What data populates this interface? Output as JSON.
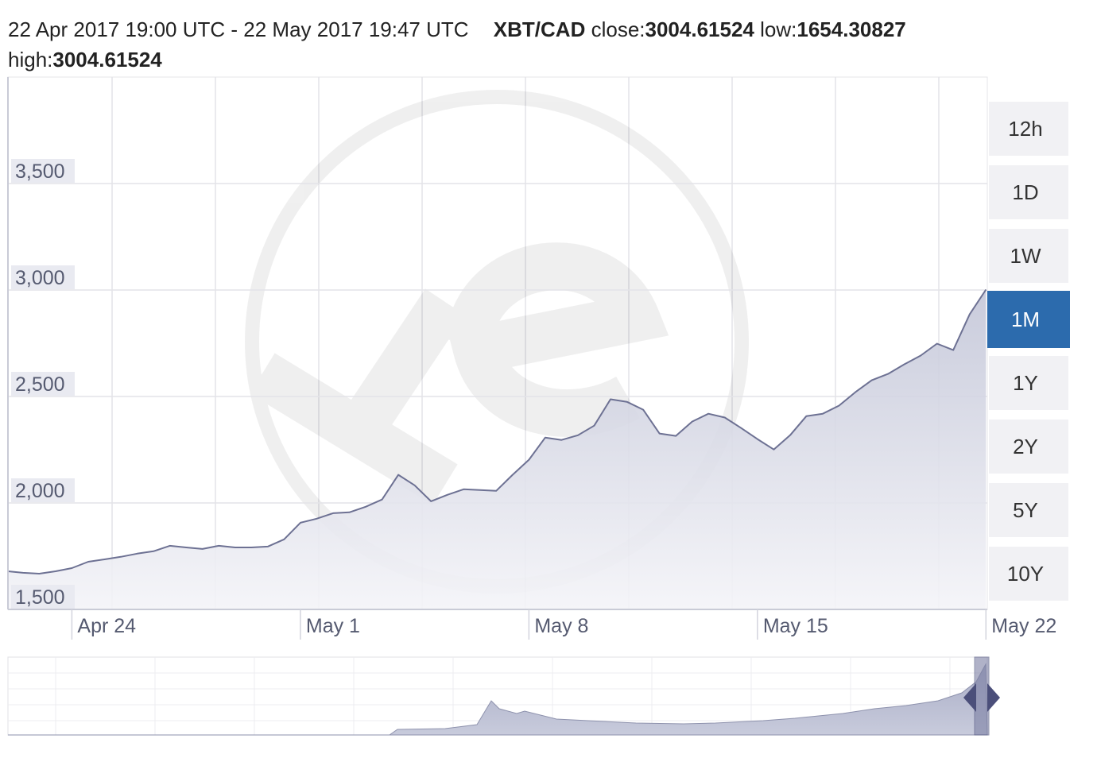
{
  "chart_data": {
    "type": "area",
    "title": "22 Apr 2017 19:00 UTC - 22 May 2017 19:47 UTC",
    "pair": "XBT/CAD",
    "stats": [
      {
        "label": "close:",
        "value": 3004.61524
      },
      {
        "label": "low:",
        "value": 1654.30827
      },
      {
        "label": "high:",
        "value": 3004.61524
      }
    ],
    "x": [
      "2017-04-22T01:00",
      "2017-04-22T12:00",
      "2017-04-23T00:00",
      "2017-04-23T12:00",
      "2017-04-24T00:00",
      "2017-04-24T12:00",
      "2017-04-25T00:00",
      "2017-04-25T12:00",
      "2017-04-26T00:00",
      "2017-04-26T12:00",
      "2017-04-27T00:00",
      "2017-04-27T12:00",
      "2017-04-28T00:00",
      "2017-04-28T12:00",
      "2017-04-29T00:00",
      "2017-04-29T12:00",
      "2017-04-30T00:00",
      "2017-04-30T12:00",
      "2017-05-01T00:00",
      "2017-05-01T12:00",
      "2017-05-02T00:00",
      "2017-05-02T12:00",
      "2017-05-03T00:00",
      "2017-05-03T12:00",
      "2017-05-04T00:00",
      "2017-05-04T12:00",
      "2017-05-05T00:00",
      "2017-05-05T12:00",
      "2017-05-06T00:00",
      "2017-05-06T12:00",
      "2017-05-07T00:00",
      "2017-05-07T12:00",
      "2017-05-08T00:00",
      "2017-05-08T12:00",
      "2017-05-09T00:00",
      "2017-05-09T12:00",
      "2017-05-10T00:00",
      "2017-05-10T12:00",
      "2017-05-11T00:00",
      "2017-05-11T12:00",
      "2017-05-12T00:00",
      "2017-05-12T12:00",
      "2017-05-13T00:00",
      "2017-05-13T12:00",
      "2017-05-14T00:00",
      "2017-05-14T12:00",
      "2017-05-15T00:00",
      "2017-05-15T12:00",
      "2017-05-16T00:00",
      "2017-05-16T12:00",
      "2017-05-17T00:00",
      "2017-05-17T12:00",
      "2017-05-18T00:00",
      "2017-05-18T12:00",
      "2017-05-19T00:00",
      "2017-05-19T12:00",
      "2017-05-20T00:00",
      "2017-05-20T12:00",
      "2017-05-21T00:00",
      "2017-05-21T12:00",
      "2017-05-22T00:00"
    ],
    "series": [
      {
        "name": "XBT/CAD",
        "color": "#6d7193",
        "values": [
          1679,
          1672,
          1668,
          1679,
          1694,
          1724,
          1735,
          1747,
          1762,
          1773,
          1799,
          1791,
          1784,
          1799,
          1791,
          1791,
          1795,
          1829,
          1907,
          1926,
          1952,
          1956,
          1982,
          2016,
          2132,
          2083,
          2008,
          2038,
          2064,
          2061,
          2057,
          2132,
          2203,
          2307,
          2296,
          2318,
          2363,
          2487,
          2475,
          2438,
          2326,
          2315,
          2382,
          2419,
          2401,
          2352,
          2300,
          2251,
          2318,
          2408,
          2419,
          2457,
          2520,
          2576,
          2606,
          2651,
          2692,
          2748,
          2718,
          2886,
          3002
        ]
      }
    ],
    "xlim": [
      "2017-04-22T01:00",
      "2017-05-22T01:00"
    ],
    "xticks": [
      {
        "value": "2017-04-24T00:00",
        "label": "Apr 24"
      },
      {
        "value": "2017-05-01T00:00",
        "label": "May 1"
      },
      {
        "value": "2017-05-08T00:00",
        "label": "May 8"
      },
      {
        "value": "2017-05-15T00:00",
        "label": "May 15"
      },
      {
        "value": "2017-05-22T00:00",
        "label": "May 22"
      }
    ],
    "ylim": [
      1500,
      4000
    ],
    "yticks": [
      {
        "value": 1500,
        "label": "1,500"
      },
      {
        "value": 2000,
        "label": "2,000"
      },
      {
        "value": 2500,
        "label": "2,500"
      },
      {
        "value": 3000,
        "label": "3,000"
      },
      {
        "value": 3500,
        "label": "3,500"
      }
    ],
    "grid": true,
    "range_buttons": [
      "12h",
      "1D",
      "1W",
      "1M",
      "1Y",
      "2Y",
      "5Y",
      "10Y"
    ],
    "active_range": "1M"
  }
}
